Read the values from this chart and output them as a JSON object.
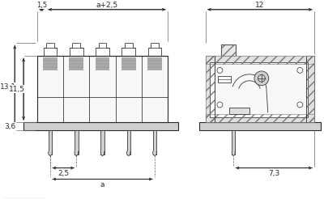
{
  "bg_color": "#ffffff",
  "lc": "#2a2a2a",
  "gray": "#aaaaaa",
  "light_gray": "#d0d0d0",
  "hatch_gray": "#888888",
  "labels": {
    "dim_15": "1,5",
    "dim_a25": "a+2,5",
    "dim_131": "13,1",
    "dim_115": "11,5",
    "dim_36": "3,6",
    "dim_25": "2,5",
    "dim_a": "a",
    "dim_12": "12",
    "dim_73": "7,3"
  },
  "n_pins": 5,
  "lv_body_xl": 42,
  "lv_body_xr": 205,
  "lv_body_yb": 95,
  "lv_body_yt": 178,
  "lv_pcb_yb": 85,
  "lv_pcb_yt": 95,
  "lv_pcb_xl": 25,
  "lv_pcb_xr": 218,
  "lv_pin_yb": 55,
  "rv_xl": 252,
  "rv_xr": 388,
  "rv_body_yb": 95,
  "rv_body_yt": 178,
  "rv_pcb_yb": 85,
  "rv_pcb_yt": 95
}
